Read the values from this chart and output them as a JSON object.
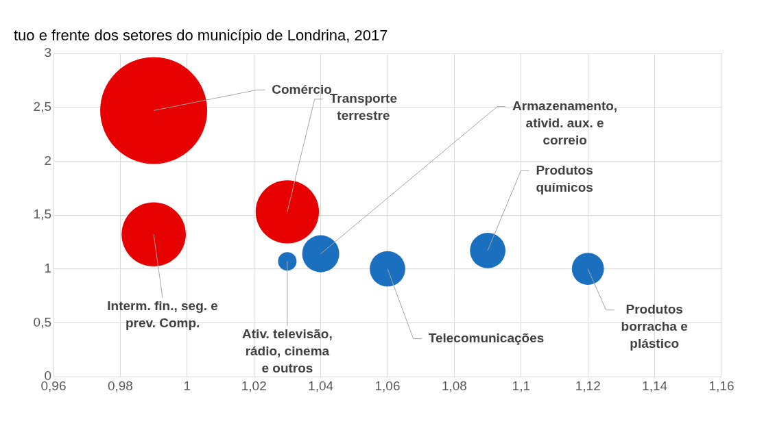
{
  "chart_data": {
    "type": "bubble",
    "title": "tuo e frente dos setores do município de Londrina, 2017",
    "x": [
      0.99,
      0.99,
      1.03,
      1.03,
      1.04,
      1.06,
      1.09,
      1.12
    ],
    "series": [
      {
        "colors": [
          "#e60000",
          "#e60000",
          "#e60000",
          "#1a6fbf",
          "#1a6fbf",
          "#1a6fbf",
          "#1a6fbf",
          "#1a6fbf"
        ],
        "values": [
          2.47,
          1.32,
          1.53,
          1.07,
          1.14,
          1.0,
          1.17,
          1.0
        ],
        "sizes": [
          1,
          0.36,
          0.35,
          0.03,
          0.12,
          0.11,
          0.11,
          0.09
        ]
      }
    ],
    "annotations": [
      {
        "text": "Comércio",
        "x": 0.99,
        "y": 2.47
      },
      {
        "text": "Interm. fin., seg. e\nprev. Comp.",
        "x": 0.99,
        "y": 1.32
      },
      {
        "text": "Transporte\nterrestre",
        "x": 1.03,
        "y": 1.53
      },
      {
        "text": "Ativ. televisão,\nrádio, cinema\ne outros",
        "x": 1.03,
        "y": 1.07
      },
      {
        "text": "Armazenamento,\nativid. aux. e\ncorreio",
        "x": 1.04,
        "y": 1.14
      },
      {
        "text": "Telecomunicações",
        "x": 1.06,
        "y": 1.0
      },
      {
        "text": "Produtos\nquímicos",
        "x": 1.09,
        "y": 1.17
      },
      {
        "text": "Produtos\nborracha e\nplástico",
        "x": 1.12,
        "y": 1.0
      }
    ],
    "xlim": [
      0.96,
      1.16
    ],
    "xticks": [
      {
        "value": 0.96,
        "label": "0,96"
      },
      {
        "value": 0.98,
        "label": "0,98"
      },
      {
        "value": 1,
        "label": "1"
      },
      {
        "value": 1.02,
        "label": "1,02"
      },
      {
        "value": 1.04,
        "label": "1,04"
      },
      {
        "value": 1.06,
        "label": "1,06"
      },
      {
        "value": 1.08,
        "label": "1,08"
      },
      {
        "value": 1.1,
        "label": "1,1"
      },
      {
        "value": 1.12,
        "label": "1,12"
      },
      {
        "value": 1.14,
        "label": "1,14"
      },
      {
        "value": 1.16,
        "label": "1,16"
      }
    ],
    "ylim": [
      0,
      3
    ],
    "yticks": [
      0,
      {
        "value": 0.5,
        "label": "0,5"
      },
      1,
      {
        "value": 1.5,
        "label": "1,5"
      },
      2,
      {
        "value": 2.5,
        "label": "2,5"
      },
      3
    ],
    "grid": true
  }
}
